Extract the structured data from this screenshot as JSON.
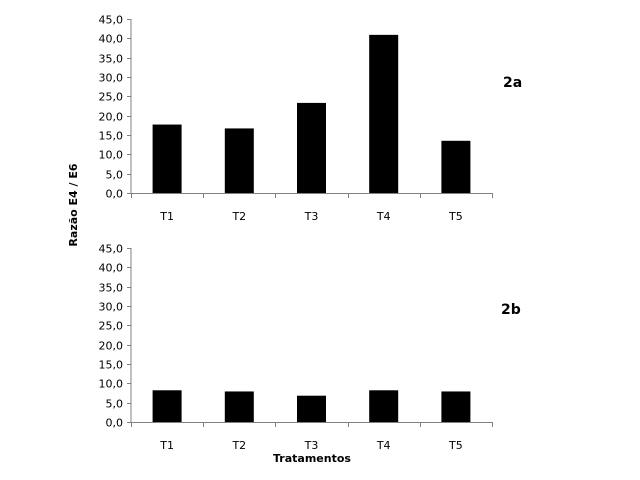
{
  "ylabel": "Razão E4 / E6",
  "xlabel": "Tratamentos",
  "chart_data": [
    {
      "type": "bar",
      "panel_label": "2a",
      "categories": [
        "T1",
        "T2",
        "T3",
        "T4",
        "T5"
      ],
      "values": [
        17.7,
        16.7,
        23.3,
        40.9,
        13.5
      ],
      "ylim": [
        0,
        45
      ],
      "yticks": [
        0,
        5,
        10,
        15,
        20,
        25,
        30,
        35,
        40,
        45
      ],
      "ytick_labels": [
        "0,0",
        "5,0",
        "10,0",
        "15,0",
        "20,0",
        "25,0",
        "30,0",
        "35,0",
        "40,0",
        "45,0"
      ],
      "bar_color": "#000000",
      "grid": false,
      "legend": "none"
    },
    {
      "type": "bar",
      "panel_label": "2b",
      "categories": [
        "T1",
        "T2",
        "T3",
        "T4",
        "T5"
      ],
      "values": [
        8.2,
        7.9,
        6.8,
        8.2,
        7.9
      ],
      "ylim": [
        0,
        45
      ],
      "yticks": [
        0,
        5,
        10,
        15,
        20,
        25,
        30,
        35,
        40,
        45
      ],
      "ytick_labels": [
        "0,0",
        "5,0",
        "10,0",
        "15,0",
        "20,0",
        "25,0",
        "30,0",
        "35,0",
        "40,0",
        "45,0"
      ],
      "bar_color": "#000000",
      "grid": false,
      "legend": "none"
    }
  ]
}
